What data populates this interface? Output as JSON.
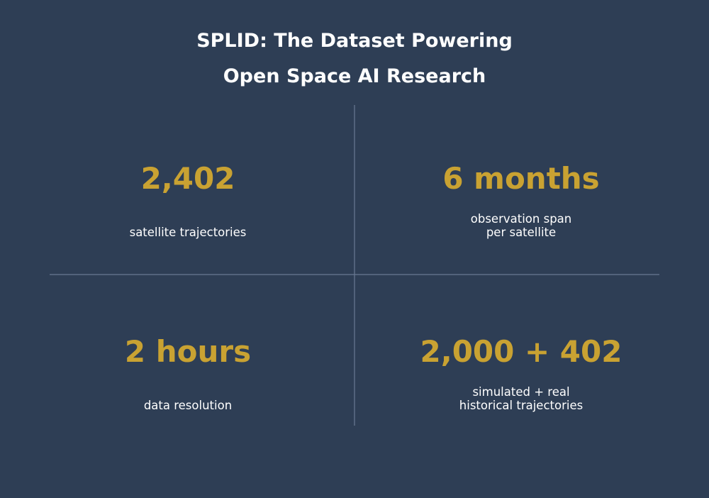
{
  "title": {
    "lines": [
      "SPLID: The Dataset Powering",
      "Open Space AI Research"
    ]
  },
  "stats": [
    {
      "value": "2,402",
      "label": [
        "satellite trajectories"
      ]
    },
    {
      "value": "6 months",
      "label": [
        "observation span",
        "per satellite"
      ]
    },
    {
      "value": "2 hours",
      "label": [
        "data resolution"
      ]
    },
    {
      "value": "2,000 + 402",
      "label": [
        "simulated + real",
        "historical trajectories"
      ]
    }
  ]
}
